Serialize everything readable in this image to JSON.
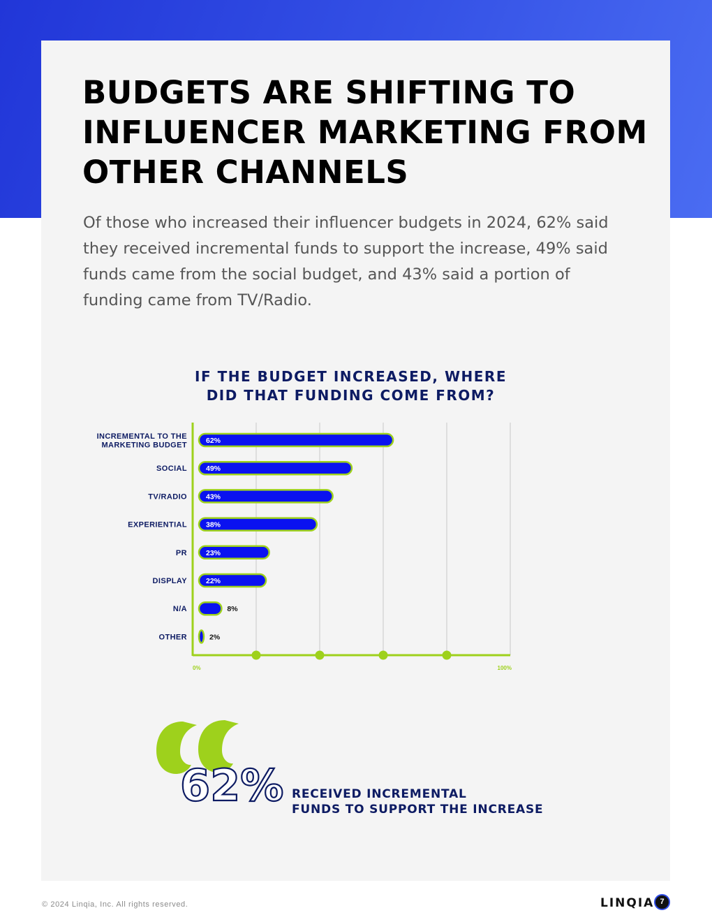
{
  "page": {
    "title": "BUDGETS ARE SHIFTING TO INFLUENCER MARKETING FROM OTHER CHANNELS",
    "intro": "Of those who increased their influencer budgets in 2024, 62% said they received incremental funds to support the increase, 49% said funds came from the social budget, and 43% said a portion of funding came from TV/Radio.",
    "stat_value": "62%",
    "stat_caption_line1": "RECEIVED INCREMENTAL",
    "stat_caption_line2": "FUNDS TO SUPPORT THE INCREASE",
    "copyright": "© 2024 Linqia, Inc. All rights reserved.",
    "brand": "LINQIA",
    "page_number": "7"
  },
  "colors": {
    "hero_blue": "#2f4ce6",
    "bar_fill": "#0a12f0",
    "bar_outline": "#9ed11c",
    "accent_green": "#9ed11c",
    "navy_text": "#0d1b63"
  },
  "chart_data": {
    "type": "bar",
    "orientation": "horizontal",
    "title_line1": "IF THE BUDGET INCREASED, WHERE",
    "title_line2": "DID THAT FUNDING COME FROM?",
    "categories": [
      [
        "INCREMENTAL TO THE",
        "MARKETING BUDGET"
      ],
      [
        "SOCIAL"
      ],
      [
        "TV/RADIO"
      ],
      [
        "EXPERIENTIAL"
      ],
      [
        "PR"
      ],
      [
        "DISPLAY"
      ],
      [
        "N/A"
      ],
      [
        "OTHER"
      ]
    ],
    "values": [
      62,
      49,
      43,
      38,
      23,
      22,
      8,
      2
    ],
    "value_labels": [
      "62%",
      "49%",
      "43%",
      "38%",
      "23%",
      "22%",
      "8%",
      "2%"
    ],
    "xlim": [
      0,
      100
    ],
    "x_tick_labels": [
      "0%",
      "100%"
    ],
    "gridlines": [
      20,
      40,
      60,
      80,
      100
    ],
    "grid": true
  }
}
